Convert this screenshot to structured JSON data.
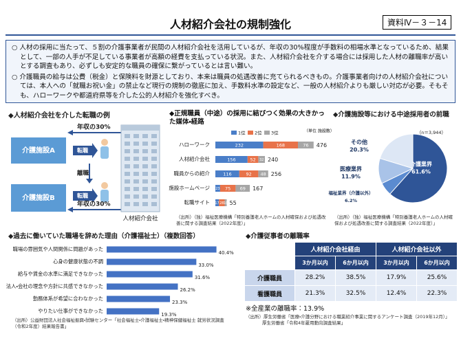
{
  "header": {
    "title": "人材紹介会社の規制強化",
    "badge": "資料Ⅳ－３－14"
  },
  "intro": [
    "○ 人材の採用に当たって、５割の介護事業者が民間の人材紹介会社を活用しているが、年収の30%程度が手数料の相場水準となっているため、結果として、一部の人手が不足している事業者が高額の経費を支払っている状況。また、人材紹介会社を介する場合には採用した人材の離職率が高いとする調査もあり、必ずしも安定的な職員の確保に繋がっているとは言い難い。",
    "○ 介護職員の給与は公費（税金）と保険料を財源としており、本来は職員の処遇改善に充てられるべきもの。介護事業者向けの人材紹介会社については、本人への「就職お祝い金」の禁止など現行の規制の徹底に加え、手数料水準の設定など、一般の人材紹介よりも厳しい対応が必要。そもそも、ハローワークや都道府県等を介した公的人材紹介を強化すべき。"
  ],
  "diagram": {
    "title": "◆人材紹介会社を介した転職の例",
    "fee_top": "年収の30%",
    "facility_a": "介護施設A",
    "move_top": "転職",
    "quit": "離職",
    "facility_b": "介護施設B",
    "move_bottom": "転職",
    "fee_bottom": "年収の30%",
    "agency": "人材紹介会社"
  },
  "chart_data": [
    {
      "type": "stacked_bar",
      "title": "◆正規職員（中途）の採用に結びつく効果の大きかった媒体・経路",
      "unit": "（単位 施設数）",
      "categories": [
        "ハローワーク",
        "人材紹介会社",
        "職員からの紹介",
        "施設ホームページ",
        "転職サイト"
      ],
      "series": [
        {
          "name": "1位",
          "color": "#4a7ec8",
          "values": [
            232,
            156,
            116,
            23,
            17
          ]
        },
        {
          "name": "2位",
          "color": "#e8734a",
          "values": [
            168,
            52,
            92,
            75,
            28
          ]
        },
        {
          "name": "3位",
          "color": "#a6a6a6",
          "values": [
            76,
            32,
            48,
            69,
            10
          ]
        }
      ],
      "totals": [
        476,
        240,
        256,
        167,
        55
      ],
      "source": "（出所）（独）福祉医療機構「特別養護老人ホームの人材確保および処遇改善に関する調査結果（2022年度）」"
    },
    {
      "type": "pie",
      "title": "◆介護施設等における中途採用者の前職",
      "note": "（n＝3,944）",
      "categories": [
        "介護業界",
        "福祉業界（介護以外）",
        "医療業界",
        "その他"
      ],
      "values": [
        61.6,
        6.2,
        11.9,
        20.3
      ],
      "value_labels": [
        "61.6%",
        "6.2%",
        "11.9%",
        "20.3%"
      ],
      "colors": [
        "#2f5597",
        "#5b8bd0",
        "#a9c3e8",
        "#dde7f5"
      ],
      "source": "（出所）（独）福祉医療機構「特別養護老人ホームの人材確保および処遇改善に関する調査結果（2022年度）」"
    },
    {
      "type": "hbar",
      "title": "◆過去に働いていた職場を辞めた理由（介護福祉士）（複数回答）",
      "categories": [
        "職場の雰囲気や人間関係に問題があった",
        "心身の健康状態の不調",
        "給与や賃金の水準に満足できなかった",
        "法人・会社の理念や方針に共感できなかった",
        "勤務体系が希望に合わなかった",
        "やりたい仕事ができなかった"
      ],
      "values": [
        40.4,
        33.0,
        31.6,
        26.2,
        23.3,
        19.3
      ],
      "value_labels": [
        "40.4%",
        "33.0%",
        "31.6%",
        "26.2%",
        "23.3%",
        "19.3%"
      ],
      "color": "#4472c4",
      "source": "（出所）公益財団法人社会福祉振興・試験センター「社会福祉士・介護福祉士・精神保健福祉士 就労状況調査（令和2年度）結果報告書」"
    }
  ],
  "table": {
    "title": "◆介護従事者の離職率",
    "groups": [
      "人材紹介会社経由",
      "人材紹介会社以外"
    ],
    "subheaders": [
      "3か月以内",
      "6か月以内",
      "3か月以内",
      "6か月以内"
    ],
    "rows": [
      [
        "介護職員",
        "28.2%",
        "38.5%",
        "17.9%",
        "25.6%"
      ],
      [
        "看護職員",
        "21.3%",
        "32.5%",
        "12.4%",
        "22.3%"
      ]
    ],
    "note": "※全産業の離職率：13.9%",
    "source": [
      "（出所）厚生労働省「医療・介護分野における職業紹介事業に関するアンケート調査（2019年12月）」",
      "厚生労働省「令和4年雇用動向調査結果」"
    ]
  }
}
